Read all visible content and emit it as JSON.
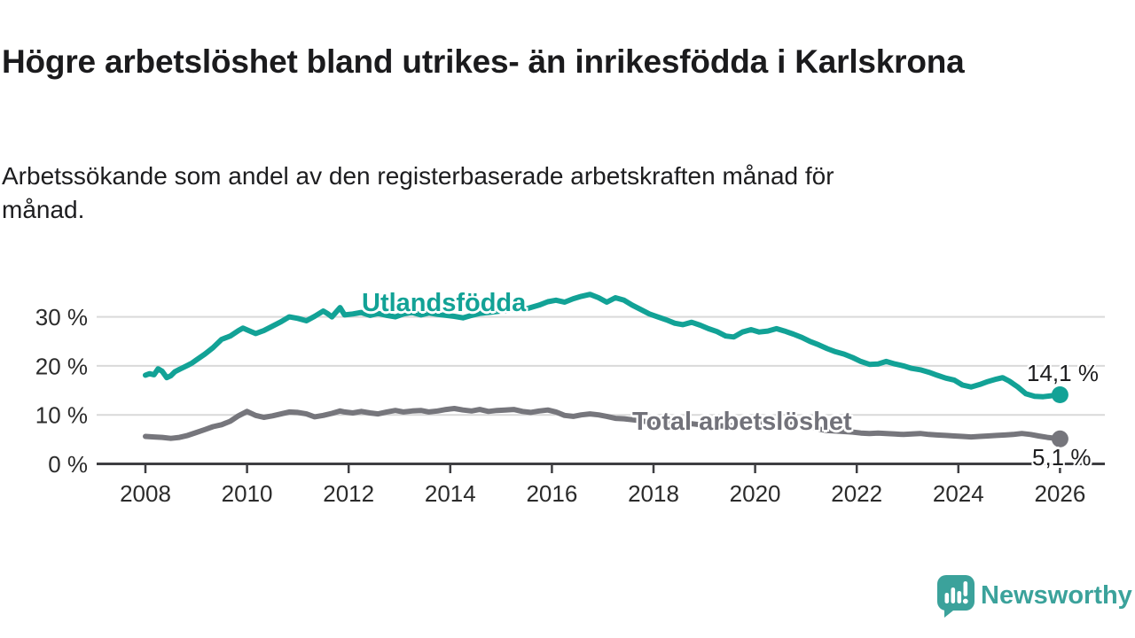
{
  "header": {
    "title": "Högre arbetslöshet bland utrikes- än inrikesfödda i Karlskrona",
    "subtitle": "Arbetssökande som andel av den registerbaserade arbetskraften månad för månad.",
    "subtitle_lines": [
      "Arbetssökande som andel av den registerbaserade arbetskraften månad för",
      "månad."
    ]
  },
  "chart_data": {
    "type": "line",
    "title": "Högre arbetslöshet bland utrikes- än inrikesfödda i Karlskrona",
    "subtitle": "Arbetssökande som andel av den registerbaserade arbetskraften månad för månad.",
    "xlabel": "",
    "ylabel": "",
    "xlim": [
      2007.8,
      2026.9
    ],
    "ylim": [
      0,
      36
    ],
    "grid": "horizontal",
    "legend_position": "inline-labels",
    "x_ticks": [
      "2008",
      "2010",
      "2012",
      "2014",
      "2016",
      "2018",
      "2020",
      "2022",
      "2024",
      "2026"
    ],
    "y_ticks": [
      {
        "value": 0,
        "label": "0 %"
      },
      {
        "value": 10,
        "label": "10 %"
      },
      {
        "value": 20,
        "label": "20 %"
      },
      {
        "value": 30,
        "label": "30 %"
      }
    ],
    "series": [
      {
        "name": "Utlandsfödda",
        "color": "#12a296",
        "end_label": "14,1 %",
        "end_value": 14.1,
        "points": [
          [
            2008.0,
            18.1
          ],
          [
            2008.08,
            18.4
          ],
          [
            2008.17,
            18.2
          ],
          [
            2008.25,
            19.4
          ],
          [
            2008.33,
            18.9
          ],
          [
            2008.42,
            17.6
          ],
          [
            2008.5,
            18.0
          ],
          [
            2008.58,
            18.8
          ],
          [
            2008.67,
            19.3
          ],
          [
            2008.75,
            19.7
          ],
          [
            2008.83,
            20.1
          ],
          [
            2008.92,
            20.6
          ],
          [
            2009.0,
            21.2
          ],
          [
            2009.17,
            22.4
          ],
          [
            2009.33,
            23.7
          ],
          [
            2009.5,
            25.4
          ],
          [
            2009.67,
            26.1
          ],
          [
            2009.83,
            27.2
          ],
          [
            2009.92,
            27.7
          ],
          [
            2010.08,
            27.0
          ],
          [
            2010.17,
            26.6
          ],
          [
            2010.33,
            27.2
          ],
          [
            2010.5,
            28.1
          ],
          [
            2010.67,
            29.0
          ],
          [
            2010.83,
            30.0
          ],
          [
            2011.0,
            29.7
          ],
          [
            2011.17,
            29.2
          ],
          [
            2011.33,
            30.1
          ],
          [
            2011.5,
            31.2
          ],
          [
            2011.58,
            30.7
          ],
          [
            2011.67,
            30.0
          ],
          [
            2011.83,
            31.9
          ],
          [
            2011.92,
            30.4
          ],
          [
            2012.08,
            30.6
          ],
          [
            2012.25,
            30.9
          ],
          [
            2012.42,
            30.3
          ],
          [
            2012.58,
            30.7
          ],
          [
            2012.75,
            30.3
          ],
          [
            2012.92,
            30.0
          ],
          [
            2013.08,
            30.6
          ],
          [
            2013.25,
            30.9
          ],
          [
            2013.42,
            30.4
          ],
          [
            2013.58,
            30.8
          ],
          [
            2013.75,
            30.5
          ],
          [
            2013.92,
            30.3
          ],
          [
            2014.08,
            30.1
          ],
          [
            2014.25,
            29.8
          ],
          [
            2014.42,
            30.3
          ],
          [
            2014.58,
            30.7
          ],
          [
            2014.75,
            30.9
          ],
          [
            2014.92,
            31.1
          ],
          [
            2015.08,
            31.3
          ],
          [
            2015.25,
            31.6
          ],
          [
            2015.42,
            31.4
          ],
          [
            2015.58,
            31.9
          ],
          [
            2015.75,
            32.4
          ],
          [
            2015.92,
            33.1
          ],
          [
            2016.08,
            33.4
          ],
          [
            2016.25,
            33.0
          ],
          [
            2016.42,
            33.7
          ],
          [
            2016.58,
            34.2
          ],
          [
            2016.75,
            34.6
          ],
          [
            2016.92,
            33.9
          ],
          [
            2017.08,
            33.0
          ],
          [
            2017.25,
            33.9
          ],
          [
            2017.42,
            33.4
          ],
          [
            2017.58,
            32.4
          ],
          [
            2017.75,
            31.5
          ],
          [
            2017.92,
            30.6
          ],
          [
            2018.08,
            30.0
          ],
          [
            2018.25,
            29.4
          ],
          [
            2018.42,
            28.7
          ],
          [
            2018.58,
            28.4
          ],
          [
            2018.75,
            28.9
          ],
          [
            2018.92,
            28.3
          ],
          [
            2019.08,
            27.6
          ],
          [
            2019.25,
            27.0
          ],
          [
            2019.42,
            26.1
          ],
          [
            2019.58,
            25.9
          ],
          [
            2019.75,
            26.9
          ],
          [
            2019.92,
            27.4
          ],
          [
            2020.08,
            26.9
          ],
          [
            2020.25,
            27.1
          ],
          [
            2020.42,
            27.6
          ],
          [
            2020.58,
            27.1
          ],
          [
            2020.75,
            26.5
          ],
          [
            2020.92,
            25.8
          ],
          [
            2021.08,
            25.0
          ],
          [
            2021.25,
            24.3
          ],
          [
            2021.42,
            23.5
          ],
          [
            2021.58,
            22.9
          ],
          [
            2021.75,
            22.4
          ],
          [
            2021.92,
            21.7
          ],
          [
            2022.08,
            20.9
          ],
          [
            2022.25,
            20.3
          ],
          [
            2022.42,
            20.4
          ],
          [
            2022.58,
            20.9
          ],
          [
            2022.75,
            20.4
          ],
          [
            2022.92,
            20.0
          ],
          [
            2023.08,
            19.5
          ],
          [
            2023.25,
            19.2
          ],
          [
            2023.42,
            18.7
          ],
          [
            2023.58,
            18.1
          ],
          [
            2023.75,
            17.5
          ],
          [
            2023.92,
            17.1
          ],
          [
            2024.08,
            16.1
          ],
          [
            2024.25,
            15.7
          ],
          [
            2024.42,
            16.2
          ],
          [
            2024.58,
            16.8
          ],
          [
            2024.75,
            17.3
          ],
          [
            2024.87,
            17.6
          ],
          [
            2025.0,
            16.9
          ],
          [
            2025.17,
            15.7
          ],
          [
            2025.33,
            14.3
          ],
          [
            2025.5,
            13.8
          ],
          [
            2025.67,
            13.7
          ],
          [
            2025.83,
            13.9
          ],
          [
            2026.0,
            14.1
          ]
        ]
      },
      {
        "name": "Total arbetslöshet",
        "color": "#76767c",
        "end_label": "5,1 %",
        "end_value": 5.1,
        "points": [
          [
            2008.0,
            5.6
          ],
          [
            2008.17,
            5.5
          ],
          [
            2008.33,
            5.4
          ],
          [
            2008.5,
            5.2
          ],
          [
            2008.67,
            5.4
          ],
          [
            2008.83,
            5.8
          ],
          [
            2009.0,
            6.4
          ],
          [
            2009.17,
            7.0
          ],
          [
            2009.33,
            7.6
          ],
          [
            2009.5,
            8.0
          ],
          [
            2009.67,
            8.7
          ],
          [
            2009.83,
            9.8
          ],
          [
            2010.0,
            10.7
          ],
          [
            2010.17,
            9.9
          ],
          [
            2010.33,
            9.5
          ],
          [
            2010.5,
            9.8
          ],
          [
            2010.67,
            10.2
          ],
          [
            2010.83,
            10.6
          ],
          [
            2011.0,
            10.5
          ],
          [
            2011.17,
            10.2
          ],
          [
            2011.33,
            9.6
          ],
          [
            2011.5,
            9.9
          ],
          [
            2011.67,
            10.3
          ],
          [
            2011.83,
            10.8
          ],
          [
            2011.92,
            10.6
          ],
          [
            2012.08,
            10.4
          ],
          [
            2012.25,
            10.7
          ],
          [
            2012.42,
            10.4
          ],
          [
            2012.58,
            10.2
          ],
          [
            2012.75,
            10.6
          ],
          [
            2012.92,
            10.9
          ],
          [
            2013.08,
            10.6
          ],
          [
            2013.25,
            10.8
          ],
          [
            2013.42,
            10.9
          ],
          [
            2013.58,
            10.6
          ],
          [
            2013.75,
            10.8
          ],
          [
            2013.92,
            11.1
          ],
          [
            2014.08,
            11.3
          ],
          [
            2014.25,
            11.0
          ],
          [
            2014.42,
            10.8
          ],
          [
            2014.58,
            11.1
          ],
          [
            2014.75,
            10.7
          ],
          [
            2014.92,
            10.9
          ],
          [
            2015.08,
            11.0
          ],
          [
            2015.25,
            11.1
          ],
          [
            2015.42,
            10.7
          ],
          [
            2015.58,
            10.5
          ],
          [
            2015.75,
            10.8
          ],
          [
            2015.92,
            11.0
          ],
          [
            2016.08,
            10.6
          ],
          [
            2016.25,
            9.9
          ],
          [
            2016.42,
            9.7
          ],
          [
            2016.58,
            10.0
          ],
          [
            2016.75,
            10.2
          ],
          [
            2016.92,
            10.0
          ],
          [
            2017.08,
            9.7
          ],
          [
            2017.25,
            9.3
          ],
          [
            2017.42,
            9.2
          ],
          [
            2017.58,
            9.0
          ],
          [
            2017.75,
            8.8
          ],
          [
            2017.92,
            8.5
          ],
          [
            2018.08,
            8.2
          ],
          [
            2018.25,
            8.4
          ],
          [
            2018.42,
            8.6
          ],
          [
            2018.58,
            8.4
          ],
          [
            2018.75,
            8.2
          ],
          [
            2018.92,
            8.0
          ],
          [
            2019.08,
            7.9
          ],
          [
            2019.25,
            7.8
          ],
          [
            2019.42,
            7.7
          ],
          [
            2019.58,
            7.8
          ],
          [
            2019.75,
            8.0
          ],
          [
            2019.92,
            8.2
          ],
          [
            2020.08,
            8.5
          ],
          [
            2020.25,
            8.8
          ],
          [
            2020.42,
            9.0
          ],
          [
            2020.58,
            8.8
          ],
          [
            2020.75,
            8.5
          ],
          [
            2020.92,
            8.1
          ],
          [
            2021.08,
            7.6
          ],
          [
            2021.25,
            7.1
          ],
          [
            2021.42,
            6.8
          ],
          [
            2021.58,
            6.7
          ],
          [
            2021.75,
            6.6
          ],
          [
            2021.92,
            6.5
          ],
          [
            2022.08,
            6.3
          ],
          [
            2022.25,
            6.2
          ],
          [
            2022.42,
            6.3
          ],
          [
            2022.58,
            6.2
          ],
          [
            2022.75,
            6.1
          ],
          [
            2022.92,
            6.0
          ],
          [
            2023.08,
            6.1
          ],
          [
            2023.25,
            6.2
          ],
          [
            2023.42,
            6.0
          ],
          [
            2023.58,
            5.9
          ],
          [
            2023.75,
            5.8
          ],
          [
            2023.92,
            5.7
          ],
          [
            2024.08,
            5.6
          ],
          [
            2024.25,
            5.5
          ],
          [
            2024.42,
            5.6
          ],
          [
            2024.58,
            5.7
          ],
          [
            2024.75,
            5.8
          ],
          [
            2024.92,
            5.9
          ],
          [
            2025.08,
            6.0
          ],
          [
            2025.25,
            6.2
          ],
          [
            2025.42,
            6.0
          ],
          [
            2025.58,
            5.7
          ],
          [
            2025.75,
            5.4
          ],
          [
            2025.92,
            5.2
          ],
          [
            2026.0,
            5.1
          ]
        ]
      }
    ]
  },
  "footer": {
    "brand": "Newsworthy"
  },
  "colors": {
    "accent_teal": "#12a296",
    "series_gray": "#76767c",
    "grid": "#d9d9d9",
    "axis": "#3e3e42",
    "tick_text": "#2b2b2b",
    "text_dark": "#1d1d1f",
    "brand_teal": "#3ba29b"
  }
}
